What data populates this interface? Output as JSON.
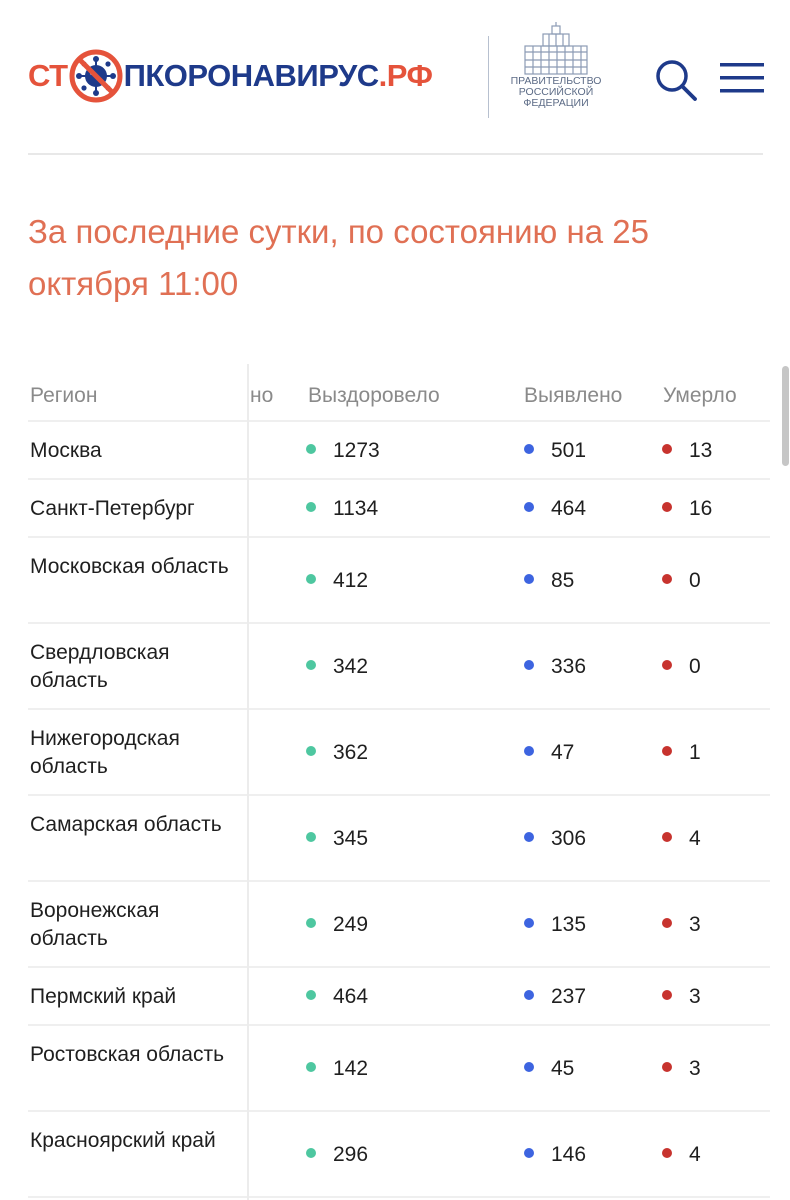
{
  "header": {
    "logo": {
      "stop": "СТ",
      "main": "ПКОРОНАВИРУС",
      "rf": ".РФ",
      "virus_icon": "virus-crossed-icon"
    },
    "gov": {
      "line1": "ПРАВИТЕЛЬСТВО",
      "line2": "РОССИЙСКОЙ",
      "line3": "ФЕДЕРАЦИИ",
      "icon": "government-building-icon"
    },
    "search_icon": "search-icon",
    "menu_icon": "hamburger-menu-icon"
  },
  "title": "За последние сутки, по состоянию на 25 октября 11:00",
  "table": {
    "headers": {
      "region": "Регион",
      "hidden": "но",
      "recovered": "Выздоровело",
      "detected": "Выявлено",
      "died": "Умерло"
    },
    "colors": {
      "recovered": "#4ec7a0",
      "detected": "#3d64e0",
      "died": "#c7332e"
    },
    "rows": [
      {
        "region": "Москва",
        "recovered": "1273",
        "detected": "501",
        "died": "13"
      },
      {
        "region": "Санкт-Петербург",
        "recovered": "1134",
        "detected": "464",
        "died": "16"
      },
      {
        "region": "Московская область",
        "recovered": "412",
        "detected": "85",
        "died": "0"
      },
      {
        "region": "Свердловская область",
        "recovered": "342",
        "detected": "336",
        "died": "0"
      },
      {
        "region": "Нижегородская область",
        "recovered": "362",
        "detected": "47",
        "died": "1"
      },
      {
        "region": "Самарская область",
        "recovered": "345",
        "detected": "306",
        "died": "4"
      },
      {
        "region": "Воронежская область",
        "recovered": "249",
        "detected": "135",
        "died": "3"
      },
      {
        "region": "Пермский край",
        "recovered": "464",
        "detected": "237",
        "died": "3"
      },
      {
        "region": "Ростовская область",
        "recovered": "142",
        "detected": "45",
        "died": "3"
      },
      {
        "region": "Красноярский край",
        "recovered": "296",
        "detected": "146",
        "died": "4"
      }
    ]
  }
}
